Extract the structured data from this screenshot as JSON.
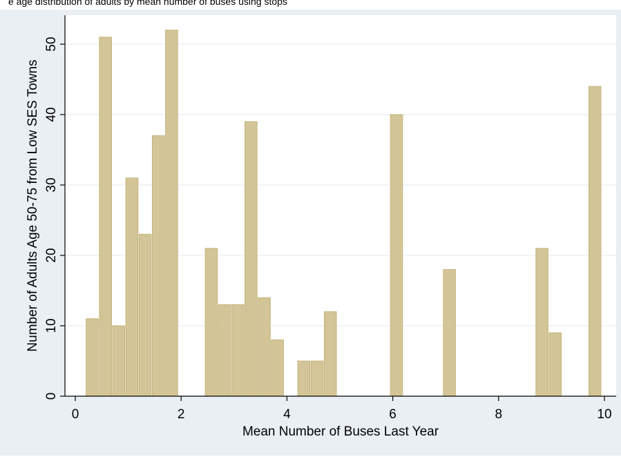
{
  "chart_data": {
    "type": "bar",
    "title": "",
    "xlabel": "Mean Number of Buses Last Year",
    "ylabel": "Number of Adults Age 50-75 from Low SES Towns",
    "xlim": [
      0,
      10
    ],
    "ylim": [
      0,
      54
    ],
    "x_ticks": [
      0,
      2,
      4,
      6,
      8,
      10
    ],
    "y_ticks": [
      0,
      10,
      20,
      30,
      40,
      50
    ],
    "grid": "horizontal",
    "bin_width": 0.25,
    "bars": [
      {
        "x": 0.33,
        "value": 11
      },
      {
        "x": 0.58,
        "value": 51
      },
      {
        "x": 0.83,
        "value": 10
      },
      {
        "x": 1.08,
        "value": 31
      },
      {
        "x": 1.33,
        "value": 23
      },
      {
        "x": 1.58,
        "value": 37
      },
      {
        "x": 1.83,
        "value": 52
      },
      {
        "x": 2.58,
        "value": 21
      },
      {
        "x": 2.83,
        "value": 13
      },
      {
        "x": 3.08,
        "value": 13
      },
      {
        "x": 3.33,
        "value": 39
      },
      {
        "x": 3.58,
        "value": 14
      },
      {
        "x": 3.83,
        "value": 8
      },
      {
        "x": 4.33,
        "value": 5
      },
      {
        "x": 4.58,
        "value": 5
      },
      {
        "x": 4.83,
        "value": 12
      },
      {
        "x": 6.08,
        "value": 40
      },
      {
        "x": 7.08,
        "value": 18
      },
      {
        "x": 8.83,
        "value": 21
      },
      {
        "x": 9.08,
        "value": 9
      },
      {
        "x": 9.83,
        "value": 44
      }
    ],
    "colors": {
      "outer_background": "#e9eff3",
      "plot_background": "#ffffff",
      "bar_fill": "#d3c597",
      "bar_edge": "#c4b47e",
      "grid": "#e6eef2"
    }
  },
  "header": {
    "caption_fragment": "e age distribution of adults by mean number of buses using stops"
  }
}
